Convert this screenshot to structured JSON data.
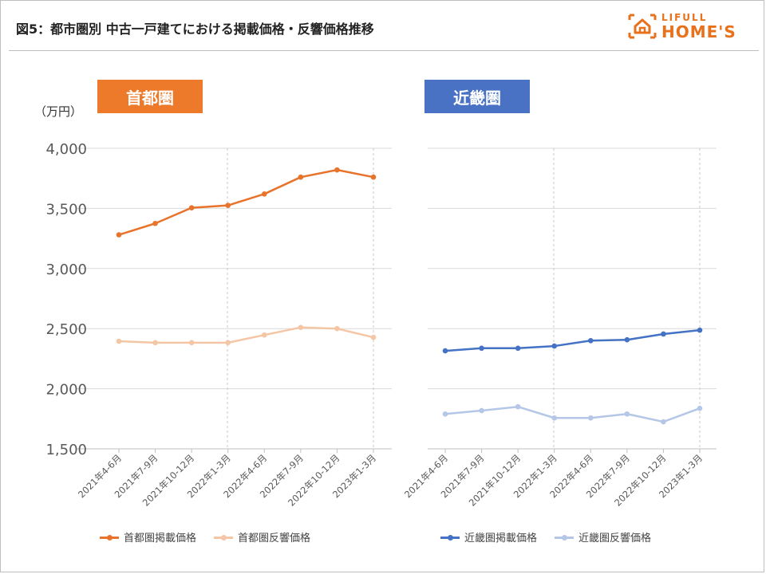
{
  "page": {
    "title": "図5：都市圏別 中古一戸建てにおける掲載価格・反響価格推移",
    "logo_top": "LIFULL",
    "logo_bottom": "HOME'S",
    "unit": "（万円）",
    "accent_orange": "#ec7a2a",
    "accent_blue": "#4a72c4"
  },
  "chart_data": [
    {
      "type": "line",
      "region_label": "首都圏",
      "categories": [
        "2021年4-6月",
        "2021年7-9月",
        "2021年10-12月",
        "2022年1-3月",
        "2022年4-6月",
        "2022年7-9月",
        "2022年10-12月",
        "2023年1-3月"
      ],
      "series": [
        {
          "name": "首都圏掲載価格",
          "color": "#e8732a",
          "values": [
            3280,
            3375,
            3505,
            3525,
            3620,
            3760,
            3820,
            3760
          ]
        },
        {
          "name": "首都圏反響価格",
          "color": "#f5c6a5",
          "values": [
            2395,
            2383,
            2383,
            2383,
            2447,
            2510,
            2500,
            2427
          ]
        }
      ],
      "ylim": [
        1500,
        4000
      ],
      "yticks": [
        "1,500",
        "2,000",
        "2,500",
        "3,000",
        "3,500",
        "4,000"
      ],
      "grid": true,
      "legend_position": "bottom"
    },
    {
      "type": "line",
      "region_label": "近畿圏",
      "categories": [
        "2021年4-6月",
        "2021年7-9月",
        "2021年10-12月",
        "2022年1-3月",
        "2022年4-6月",
        "2022年7-9月",
        "2022年10-12月",
        "2023年1-3月"
      ],
      "series": [
        {
          "name": "近畿圏掲載価格",
          "color": "#4472c4",
          "values": [
            2315,
            2337,
            2337,
            2355,
            2400,
            2407,
            2455,
            2487
          ]
        },
        {
          "name": "近畿圏反響価格",
          "color": "#b4c7e7",
          "values": [
            1790,
            1818,
            1850,
            1757,
            1757,
            1790,
            1725,
            1837
          ]
        }
      ],
      "ylim": [
        1500,
        4000
      ],
      "grid": true,
      "legend_position": "bottom"
    }
  ]
}
